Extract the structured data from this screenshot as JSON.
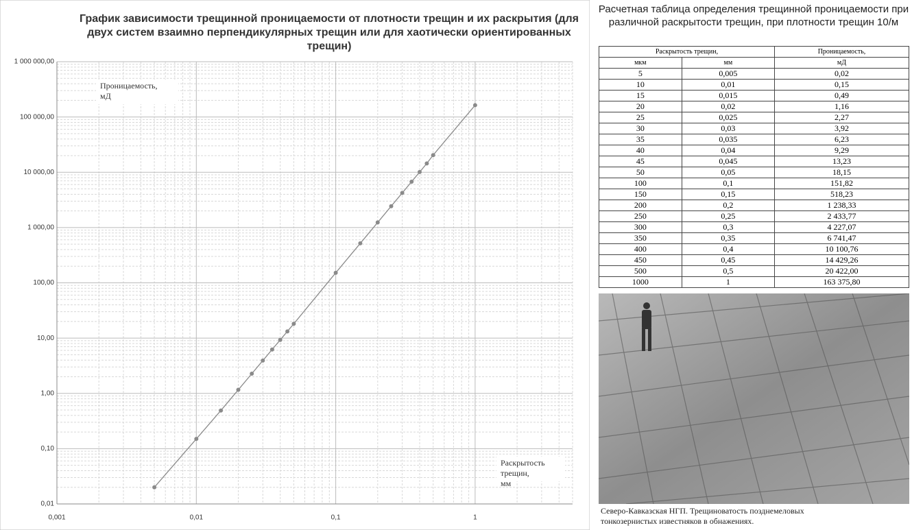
{
  "chart_data": {
    "type": "line",
    "title": "График зависимости  трещинной проницаемости от плотности трещин и их раскрытия (для двух систем взаимно перпендикулярных трещин или для хаотически ориентированных трещин)",
    "y_label": "Проницаемость, мД",
    "x_label": "Раскрытость трещин, мм",
    "x": [
      0.005,
      0.01,
      0.015,
      0.02,
      0.025,
      0.03,
      0.035,
      0.04,
      0.045,
      0.05,
      0.1,
      0.15,
      0.2,
      0.25,
      0.3,
      0.35,
      0.4,
      0.45,
      0.5,
      1
    ],
    "series": [
      {
        "color": "#8a8a8a",
        "values": [
          0.02,
          0.15,
          0.49,
          1.16,
          2.27,
          3.92,
          6.23,
          9.29,
          13.23,
          18.15,
          151.82,
          518.23,
          1238.33,
          2433.77,
          4227.07,
          6741.47,
          10100.76,
          14429.26,
          20422.0,
          163375.8
        ]
      }
    ],
    "xscale": "log",
    "yscale": "log",
    "xlim": [
      0.001,
      5
    ],
    "ylim": [
      0.01,
      1000000
    ],
    "xticks": [
      {
        "value": 0.001,
        "label": "0,001"
      },
      {
        "value": 0.01,
        "label": "0,01"
      },
      {
        "value": 0.1,
        "label": "0,1"
      },
      1
    ],
    "yticks": [
      {
        "value": 0.01,
        "label": "0,01"
      },
      {
        "value": 0.1,
        "label": "0,10"
      },
      {
        "value": 1,
        "label": "1,00"
      },
      {
        "value": 10,
        "label": "10,00"
      },
      {
        "value": 100,
        "label": "100,00"
      },
      {
        "value": 1000,
        "label": "1 000,00"
      },
      {
        "value": 10000,
        "label": "10 000,00"
      },
      {
        "value": 100000,
        "label": "100 000,00"
      },
      {
        "value": 1000000,
        "label": "1 000 000,00"
      }
    ],
    "grid": true,
    "minor_grid": true
  },
  "table": {
    "title": "Расчетная таблица определения трещинной проницаемости при различной раскрытости трещин, при плотности трещин 10/м",
    "header": [
      "Раскрытость трещин,",
      "Проницаемость,"
    ],
    "subheader": [
      "мкм",
      "мм",
      "мД"
    ],
    "rows": [
      [
        "5",
        "0,005",
        "0,02"
      ],
      [
        "10",
        "0,01",
        "0,15"
      ],
      [
        "15",
        "0,015",
        "0,49"
      ],
      [
        "20",
        "0,02",
        "1,16"
      ],
      [
        "25",
        "0,025",
        "2,27"
      ],
      [
        "30",
        "0,03",
        "3,92"
      ],
      [
        "35",
        "0,035",
        "6,23"
      ],
      [
        "40",
        "0,04",
        "9,29"
      ],
      [
        "45",
        "0,045",
        "13,23"
      ],
      [
        "50",
        "0,05",
        "18,15"
      ],
      [
        "100",
        "0,1",
        "151,82"
      ],
      [
        "150",
        "0,15",
        "518,23"
      ],
      [
        "200",
        "0,2",
        "1 238,33"
      ],
      [
        "250",
        "0,25",
        "2 433,77"
      ],
      [
        "300",
        "0,3",
        "4 227,07"
      ],
      [
        "350",
        "0,35",
        "6 741,47"
      ],
      [
        "400",
        "0,4",
        "10 100,76"
      ],
      [
        "450",
        "0,45",
        "14 429,26"
      ],
      [
        "500",
        "0,5",
        "20 422,00"
      ],
      [
        "1000",
        "1",
        "163 375,80"
      ]
    ]
  },
  "photo": {
    "caption": [
      "Северо-Кавказская НГП. Трещиноватость позднемеловых",
      "тонкозернистых известняков в обнажениях."
    ]
  }
}
